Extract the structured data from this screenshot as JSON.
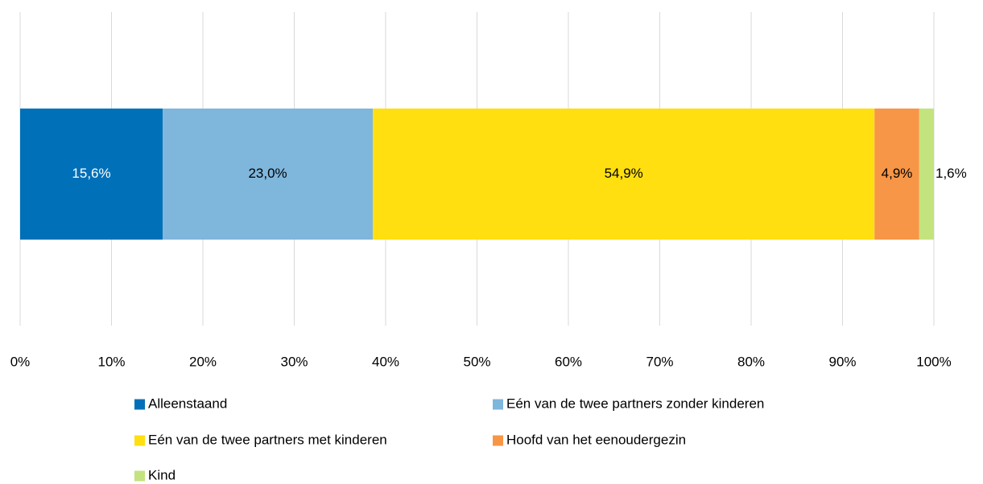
{
  "chart_data": {
    "type": "bar",
    "orientation": "horizontal",
    "stacked": true,
    "series": [
      {
        "name": "Alleenstaand",
        "color": "#0070b8",
        "label_color": "#ffffff",
        "values": [
          15.6
        ],
        "value_labels": [
          "15,6%"
        ]
      },
      {
        "name": "Eén van de twee partners zonder kinderen",
        "color": "#7fb6dc",
        "label_color": "#000000",
        "values": [
          23.0
        ],
        "value_labels": [
          "23,0%"
        ]
      },
      {
        "name": "Eén van de twee partners met kinderen",
        "color": "#ffdf0f",
        "label_color": "#000000",
        "values": [
          54.9
        ],
        "value_labels": [
          "54,9%"
        ]
      },
      {
        "name": "Hoofd van het eenoudergezin",
        "color": "#f79646",
        "label_color": "#000000",
        "values": [
          4.9
        ],
        "value_labels": [
          "4,9%"
        ]
      },
      {
        "name": "Kind",
        "color": "#c3e37f",
        "label_color": "#000000",
        "values": [
          1.6
        ],
        "value_labels": [
          "1,6%"
        ]
      }
    ],
    "xlim": [
      0,
      100
    ],
    "xticks": [
      {
        "value": 0,
        "label": "0%"
      },
      {
        "value": 10,
        "label": "10%"
      },
      {
        "value": 20,
        "label": "20%"
      },
      {
        "value": 30,
        "label": "30%"
      },
      {
        "value": 40,
        "label": "40%"
      },
      {
        "value": 50,
        "label": "50%"
      },
      {
        "value": 60,
        "label": "60%"
      },
      {
        "value": 70,
        "label": "70%"
      },
      {
        "value": 80,
        "label": "80%"
      },
      {
        "value": 90,
        "label": "90%"
      },
      {
        "value": 100,
        "label": "100%"
      }
    ],
    "grid": true,
    "legend": "bottom"
  }
}
